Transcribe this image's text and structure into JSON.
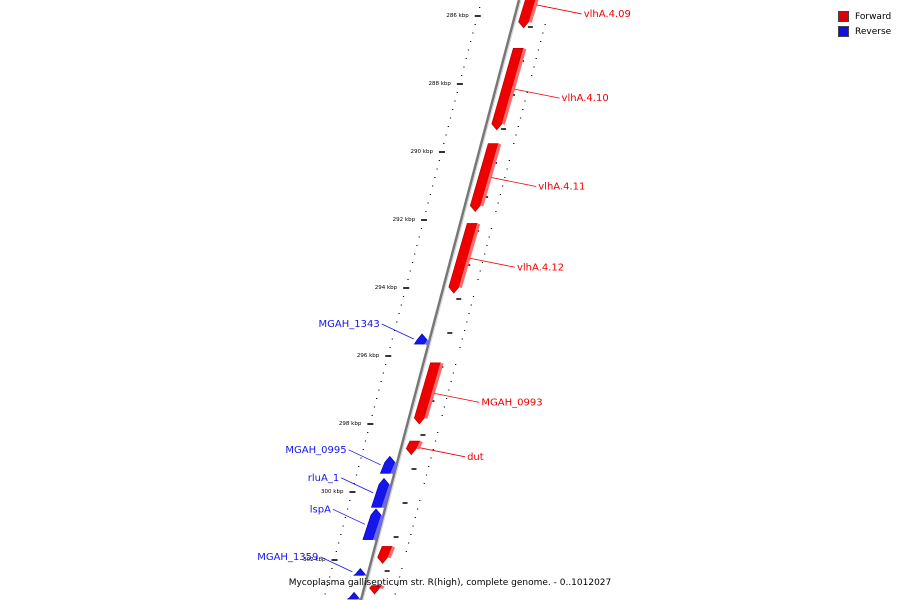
{
  "legend": {
    "forward_label": "Forward",
    "reverse_label": "Reverse",
    "forward_color": "#e00000",
    "reverse_color": "#1010e0"
  },
  "caption": "Mycoplasma gallisepticum str. R(high), complete genome. - 0..1012027",
  "colors": {
    "forward": "#ee0000",
    "forward_light": "#ff6a6a",
    "forward_dark": "#b00000",
    "reverse": "#1515ee",
    "reverse_light": "#6a6aff",
    "reverse_dark": "#0000a8",
    "backbone": "#777777",
    "tick": "#000000"
  },
  "ticks": [
    {
      "kbp": 286,
      "label": "286 kbp"
    },
    {
      "kbp": 288,
      "label": "288 kbp"
    },
    {
      "kbp": 290,
      "label": "290 kbp"
    },
    {
      "kbp": 292,
      "label": "292 kbp"
    },
    {
      "kbp": 294,
      "label": "294 kbp"
    },
    {
      "kbp": 296,
      "label": "296 kbp"
    },
    {
      "kbp": 298,
      "label": "298 kbp"
    },
    {
      "kbp": 300,
      "label": "300 kbp"
    },
    {
      "kbp": 302,
      "label": "302 kbp"
    }
  ],
  "genes": [
    {
      "name": "vlhA.4.09",
      "strand": "forward",
      "start": 285.0,
      "end": 286.35,
      "label": "vlhA.4.09"
    },
    {
      "name": "vlhA.4.10",
      "strand": "forward",
      "start": 286.95,
      "end": 289.35,
      "label": "vlhA.4.10"
    },
    {
      "name": "vlhA.4.11",
      "strand": "forward",
      "start": 289.75,
      "end": 291.75,
      "label": "vlhA.4.11"
    },
    {
      "name": "vlhA.4.12",
      "strand": "forward",
      "start": 292.1,
      "end": 294.15,
      "label": "vlhA.4.12"
    },
    {
      "name": "MGAH_1343",
      "strand": "reverse",
      "start": 295.35,
      "end": 295.65,
      "label": "MGAH_1343"
    },
    {
      "name": "MGAH_0993",
      "strand": "forward",
      "start": 296.2,
      "end": 298.0,
      "label": "MGAH_0993"
    },
    {
      "name": "dut",
      "strand": "forward",
      "start": 298.5,
      "end": 298.9,
      "label": "dut"
    },
    {
      "name": "MGAH_0995",
      "strand": "reverse",
      "start": 298.95,
      "end": 299.45,
      "label": "MGAH_0995"
    },
    {
      "name": "rluA_1",
      "strand": "reverse",
      "start": 299.6,
      "end": 300.45,
      "label": "rluA_1"
    },
    {
      "name": "lspA",
      "strand": "reverse",
      "start": 300.5,
      "end": 301.4,
      "label": "lspA"
    },
    {
      "name": "unlabeled_fwd_1",
      "strand": "forward",
      "start": 301.6,
      "end": 302.1,
      "label": ""
    },
    {
      "name": "MGAH_1359",
      "strand": "reverse",
      "start": 302.25,
      "end": 302.45,
      "label": "MGAH_1359"
    },
    {
      "name": "unlabeled_fwd_2",
      "strand": "forward",
      "start": 302.75,
      "end": 303.0,
      "label": ""
    },
    {
      "name": "unlabeled_rev_1",
      "strand": "reverse",
      "start": 302.95,
      "end": 303.15,
      "label": ""
    }
  ]
}
